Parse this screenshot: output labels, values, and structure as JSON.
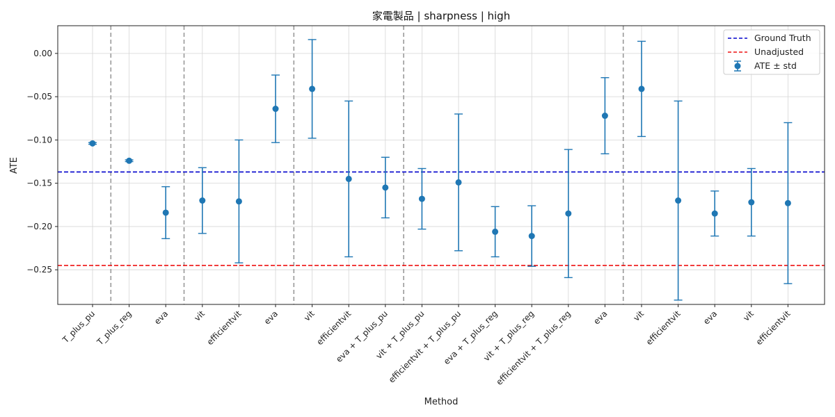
{
  "chart_data": {
    "type": "scatter",
    "title": "家電製品 | sharpness | high",
    "xlabel": "Method",
    "ylabel": "ATE",
    "ylim": [
      -0.29,
      0.032
    ],
    "yticks": [
      0.0,
      -0.05,
      -0.1,
      -0.15,
      -0.2,
      -0.25
    ],
    "ytick_labels": [
      "0.00",
      "−0.05",
      "−0.10",
      "−0.15",
      "−0.20",
      "−0.25"
    ],
    "grid": true,
    "legend_position": "top-right",
    "categories": [
      "T_plus_pu",
      "T_plus_reg",
      "eva",
      "vit",
      "efficientvit",
      "eva",
      "vit",
      "efficientvit",
      "eva + T_plus_pu",
      "vit + T_plus_pu",
      "efficientvit + T_plus_pu",
      "eva + T_plus_reg",
      "vit + T_plus_reg",
      "efficientvit + T_plus_reg",
      "eva",
      "vit",
      "efficientvit",
      "eva",
      "vit",
      "efficientvit"
    ],
    "group_separators_after_index": [
      0,
      2,
      5,
      8,
      14
    ],
    "series": [
      {
        "name": "ATE ± std",
        "color": "#1f77b4",
        "values": [
          -0.104,
          -0.124,
          -0.184,
          -0.17,
          -0.171,
          -0.064,
          -0.041,
          -0.145,
          -0.155,
          -0.168,
          -0.149,
          -0.206,
          -0.211,
          -0.185,
          -0.072,
          -0.041,
          -0.17,
          -0.185,
          -0.172,
          -0.173
        ],
        "errors": [
          0.001,
          0.001,
          0.03,
          0.038,
          0.071,
          0.039,
          0.057,
          0.09,
          0.035,
          0.035,
          0.079,
          0.029,
          0.035,
          0.074,
          0.044,
          0.055,
          0.115,
          0.026,
          0.039,
          0.093
        ]
      }
    ],
    "reference_lines": [
      {
        "name": "Ground Truth",
        "value": -0.137,
        "color": "#0000cc"
      },
      {
        "name": "Unadjusted",
        "value": -0.245,
        "color": "#ee1111"
      }
    ]
  }
}
